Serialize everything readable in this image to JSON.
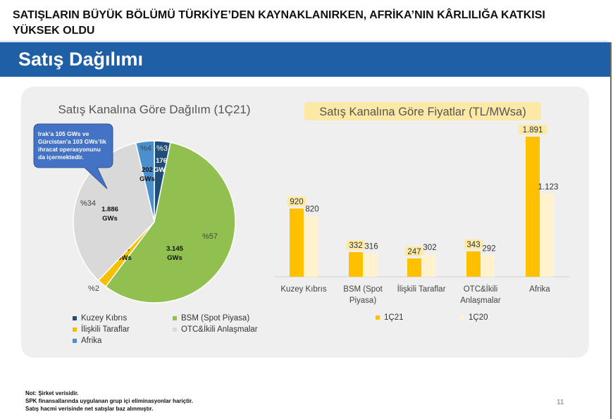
{
  "headline": {
    "line1": "SATIŞLARIN BÜYÜK BÖLÜMÜ TÜRKİYE’DEN KAYNAKLANIRKEN,  AFRİKA’NIN KÂRLILIĞA KATKISI",
    "line2": "YÜKSEK OLDU"
  },
  "section_title": "Satış Dağılımı",
  "pie_chart": {
    "title": "Satış Kanalına Göre Dağılım (1Ç21)",
    "callout": [
      "Irak’a 105 GWs ve",
      "Gürcistan’a 103 GWs’lik",
      "ihracat operasyonunu",
      "da içermektedir."
    ]
  },
  "bar_chart_title": "Satış Kanalına Göre Fiyatlar (TL/MWsa)",
  "legend_pie": [
    {
      "label": "Kuzey Kıbrıs",
      "color": "#1f4e79"
    },
    {
      "label": "BSM (Spot Piyasa)",
      "color": "#92c050"
    },
    {
      "label": "İlişkili Taraflar",
      "color": "#f6c000"
    },
    {
      "label": "OTC&İkili Anlaşmalar",
      "color": "#d9d9d9"
    },
    {
      "label": "Afrika",
      "color": "#4a90cc"
    }
  ],
  "legend_bar": [
    {
      "label": "1Ç21",
      "color": "#ffc000"
    },
    {
      "label": "1Ç20",
      "color": "#fff2cc"
    }
  ],
  "chart_data": [
    {
      "type": "pie",
      "title": "Satış Kanalına Göre Dağılım (1Ç21)",
      "slices": [
        {
          "name": "Kuzey Kıbrıs",
          "value": 176,
          "value_label": "176 GWs",
          "percent_label": "%3",
          "color": "#1f4e79"
        },
        {
          "name": "BSM (Spot Piyasa)",
          "value": 3145,
          "value_label": "3.145 GWs",
          "percent_label": "%57",
          "color": "#92c050"
        },
        {
          "name": "İlişkili Taraflar",
          "value": 103,
          "value_label": "103 GWs",
          "percent_label": "%2",
          "color": "#f6c000"
        },
        {
          "name": "OTC&İkili Anlaşmalar",
          "value": 1886,
          "value_label": "1.886 GWs",
          "percent_label": "%34",
          "color": "#d9d9d9"
        },
        {
          "name": "Afrika",
          "value": 202,
          "value_label": "202 GWs",
          "percent_label": "%4",
          "color": "#4a90cc"
        }
      ]
    },
    {
      "type": "bar",
      "title": "Satış Kanalına Göre Fiyatlar (TL/MWsa)",
      "categories": [
        "Kuzey Kıbrıs",
        "BSM (Spot Piyasa)",
        "İlişkili Taraflar",
        "OTC&İkili Anlaşmalar",
        "Afrika"
      ],
      "category_lines": [
        [
          "Kuzey Kıbrıs"
        ],
        [
          "BSM (Spot",
          "Piyasa)"
        ],
        [
          "İlişkili Taraflar"
        ],
        [
          "OTC&İkili",
          "Anlaşmalar"
        ],
        [
          "Afrika"
        ]
      ],
      "series": [
        {
          "name": "1Ç21",
          "values": [
            920,
            332,
            247,
            343,
            1891
          ],
          "labels": [
            "920",
            "332",
            "247",
            "343",
            "1.891"
          ],
          "color": "#ffc000"
        },
        {
          "name": "1Ç20",
          "values": [
            820,
            316,
            302,
            292,
            1123
          ],
          "labels": [
            "820",
            "316",
            "302",
            "292",
            "1.123"
          ],
          "color": "#fff2cc"
        }
      ],
      "ylim": [
        0,
        1891
      ],
      "grid": false
    }
  ],
  "footnotes": [
    "Not: Şirket verisidir.",
    "SPK finansallarında uygulanan grup içi eliminasyonlar hariçtir.",
    "Satış hacmi verisinde net satışlar baz alınmıştır."
  ],
  "page_number": "11"
}
